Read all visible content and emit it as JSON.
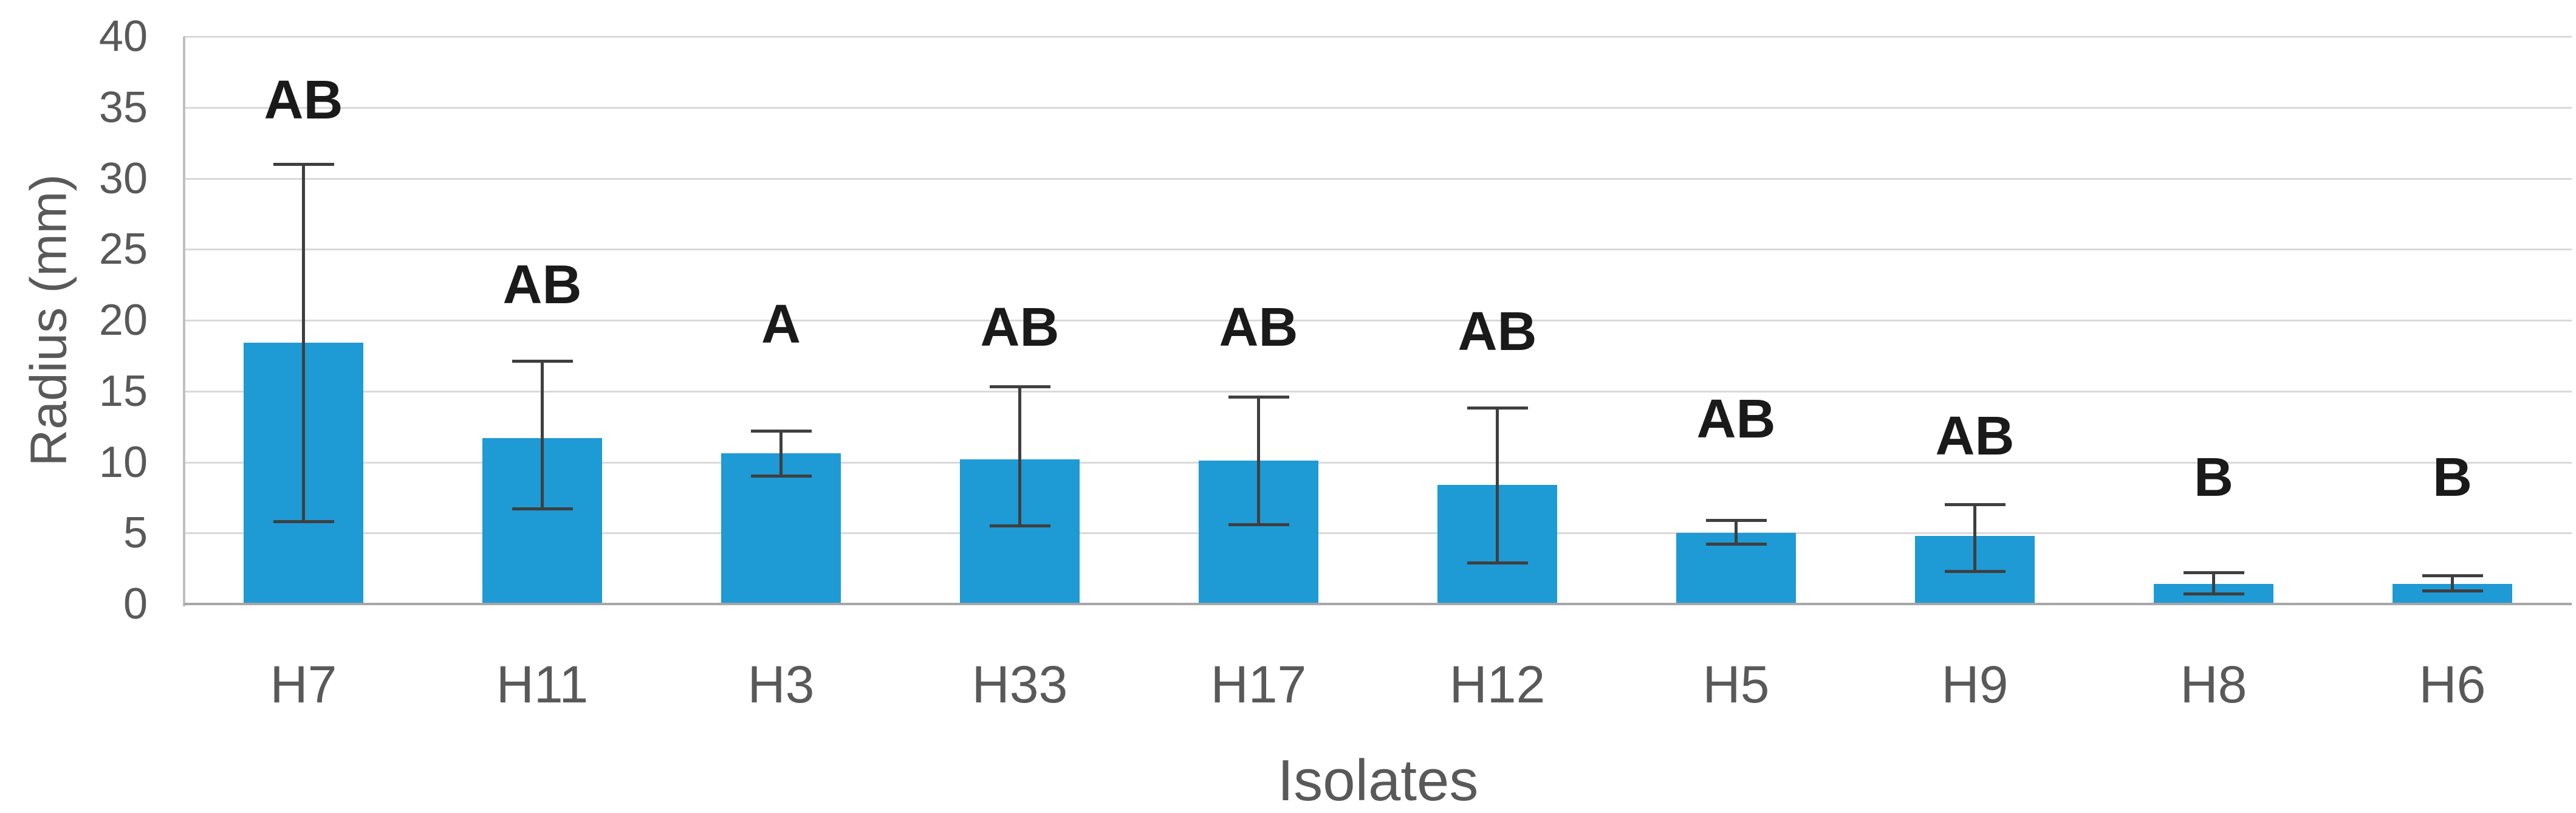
{
  "chart_data": {
    "type": "bar",
    "title": "",
    "xlabel": "Isolates",
    "ylabel": "Radius (mm)",
    "ylim": [
      0,
      40
    ],
    "yticks": [
      0,
      5,
      10,
      15,
      20,
      25,
      30,
      35,
      40
    ],
    "grid": true,
    "legend": "none",
    "categories": [
      "H7",
      "H11",
      "H3",
      "H33",
      "H17",
      "H12",
      "H5",
      "H9",
      "H8",
      "H6"
    ],
    "series": [
      {
        "name": "Radius",
        "values": [
          18.4,
          11.7,
          10.6,
          10.2,
          10.1,
          8.4,
          5.0,
          4.8,
          1.4,
          1.4
        ],
        "error_bar_upper": [
          31.0,
          17.1,
          12.2,
          15.3,
          14.6,
          13.8,
          5.9,
          7.0,
          2.2,
          2.0
        ],
        "error_bar_lower": [
          5.8,
          6.7,
          9.0,
          5.5,
          5.6,
          2.9,
          4.2,
          2.3,
          0.7,
          0.9
        ]
      }
    ],
    "significance_letters": [
      "AB",
      "AB",
      "A",
      "AB",
      "AB",
      "AB",
      "AB",
      "AB",
      "B",
      "B"
    ],
    "significance_letter_y_mm": [
      35.5,
      22.5,
      19.7,
      19.5,
      19.5,
      19.2,
      13.0,
      11.8,
      8.9,
      8.9
    ],
    "colors": {
      "bar_fill": "#1E9AD5",
      "gridline": "#D9D9D9",
      "axis_line": "#BFBFBF",
      "zero_line": "#A6A6A6",
      "axis_text": "#595959",
      "letter_text": "#1A1A1A",
      "error_bar": "#3F3F3F",
      "background": "#FFFFFF"
    }
  }
}
